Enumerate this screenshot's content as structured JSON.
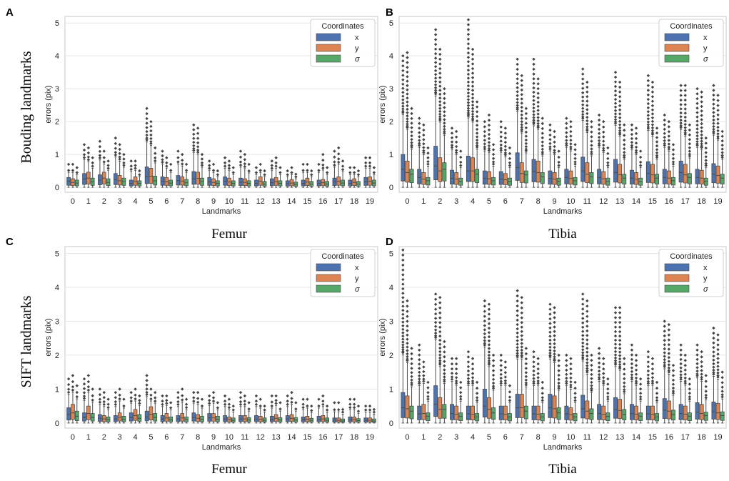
{
  "figure": {
    "row_labels": [
      "Bouding landmarks",
      "SIFT landmarks"
    ],
    "column_captions": [
      {
        "label": "Femur"
      },
      {
        "label": "Tibia"
      },
      {
        "label": "Femur"
      },
      {
        "label": "Tibia"
      }
    ]
  },
  "colors": {
    "x": "#4c72b0",
    "y": "#dd8452",
    "sigma": "#55a868",
    "outlier": "#444444",
    "grid": "#e6e6e6",
    "frame": "#c8c8c8"
  },
  "chart_data": [
    {
      "panel": "A",
      "type": "boxplot",
      "bone": "Femur",
      "landmark_set": "Bouding landmarks",
      "xlabel": "Landmarks",
      "ylabel": "errors (pix)",
      "ylim": [
        -0.15,
        5.2
      ],
      "yticks": [
        0,
        1,
        2,
        3,
        4,
        5
      ],
      "categories": [
        "0",
        "1",
        "2",
        "3",
        "4",
        "5",
        "6",
        "7",
        "8",
        "9",
        "10",
        "11",
        "12",
        "13",
        "14",
        "15",
        "16",
        "17",
        "18",
        "19"
      ],
      "legend": {
        "title": "Coordinates",
        "entries": [
          "x",
          "y",
          "σ"
        ]
      },
      "series": [
        {
          "name": "x",
          "upper_quartile": [
            0.3,
            0.42,
            0.38,
            0.42,
            0.22,
            0.62,
            0.32,
            0.36,
            0.48,
            0.3,
            0.32,
            0.28,
            0.22,
            0.26,
            0.2,
            0.22,
            0.22,
            0.28,
            0.22,
            0.3
          ],
          "median": [
            0.18,
            0.25,
            0.22,
            0.24,
            0.12,
            0.32,
            0.18,
            0.2,
            0.26,
            0.17,
            0.18,
            0.16,
            0.12,
            0.14,
            0.11,
            0.12,
            0.12,
            0.16,
            0.12,
            0.17
          ],
          "max_outlier": [
            0.7,
            1.3,
            1.4,
            1.5,
            0.8,
            2.4,
            1.1,
            1.1,
            1.9,
            0.8,
            0.9,
            1.1,
            0.6,
            0.8,
            0.5,
            0.7,
            0.7,
            1.1,
            0.6,
            0.9
          ]
        },
        {
          "name": "y",
          "upper_quartile": [
            0.26,
            0.46,
            0.46,
            0.36,
            0.32,
            0.58,
            0.3,
            0.32,
            0.46,
            0.26,
            0.28,
            0.26,
            0.32,
            0.3,
            0.24,
            0.28,
            0.24,
            0.32,
            0.26,
            0.32
          ],
          "median": [
            0.15,
            0.28,
            0.28,
            0.2,
            0.18,
            0.34,
            0.17,
            0.19,
            0.27,
            0.15,
            0.16,
            0.15,
            0.18,
            0.17,
            0.13,
            0.16,
            0.14,
            0.18,
            0.15,
            0.18
          ],
          "max_outlier": [
            0.7,
            1.2,
            1.1,
            1.3,
            0.8,
            2.0,
            0.9,
            1.0,
            1.8,
            0.7,
            0.8,
            1.0,
            0.7,
            0.9,
            0.6,
            0.7,
            1.0,
            1.2,
            0.6,
            0.9
          ]
        },
        {
          "name": "σ",
          "upper_quartile": [
            0.22,
            0.28,
            0.26,
            0.28,
            0.2,
            0.34,
            0.22,
            0.24,
            0.28,
            0.2,
            0.2,
            0.2,
            0.18,
            0.2,
            0.16,
            0.18,
            0.18,
            0.22,
            0.18,
            0.22
          ],
          "median": [
            0.13,
            0.17,
            0.15,
            0.17,
            0.12,
            0.2,
            0.13,
            0.14,
            0.17,
            0.12,
            0.12,
            0.12,
            0.1,
            0.12,
            0.09,
            0.1,
            0.1,
            0.13,
            0.1,
            0.13
          ],
          "max_outlier": [
            0.6,
            0.9,
            0.8,
            1.0,
            0.5,
            1.2,
            0.7,
            0.7,
            1.0,
            0.5,
            0.6,
            0.7,
            0.5,
            0.6,
            0.4,
            0.5,
            0.6,
            0.8,
            0.5,
            0.6
          ]
        }
      ]
    },
    {
      "panel": "B",
      "type": "boxplot",
      "bone": "Tibia",
      "landmark_set": "Bouding landmarks",
      "xlabel": "Landmarks",
      "ylabel": "errors (pix)",
      "ylim": [
        -0.15,
        5.2
      ],
      "yticks": [
        0,
        1,
        2,
        3,
        4,
        5
      ],
      "categories": [
        "0",
        "1",
        "2",
        "3",
        "4",
        "5",
        "6",
        "7",
        "8",
        "9",
        "10",
        "11",
        "12",
        "13",
        "14",
        "15",
        "16",
        "17",
        "18",
        "19"
      ],
      "legend": {
        "title": "Coordinates",
        "entries": [
          "x",
          "y",
          "σ"
        ]
      },
      "series": [
        {
          "name": "x",
          "upper_quartile": [
            1.0,
            0.55,
            1.25,
            0.52,
            0.95,
            0.5,
            0.48,
            1.05,
            0.85,
            0.5,
            0.55,
            0.92,
            0.55,
            0.85,
            0.52,
            0.78,
            0.55,
            0.8,
            0.55,
            0.72
          ],
          "median": [
            0.55,
            0.3,
            0.65,
            0.28,
            0.5,
            0.27,
            0.25,
            0.6,
            0.48,
            0.27,
            0.3,
            0.5,
            0.3,
            0.45,
            0.28,
            0.42,
            0.3,
            0.45,
            0.3,
            0.4
          ],
          "max_outlier": [
            4.0,
            2.1,
            4.8,
            1.8,
            5.1,
            2.0,
            2.0,
            3.9,
            3.9,
            1.9,
            2.1,
            3.6,
            2.2,
            3.5,
            1.9,
            3.4,
            2.2,
            3.1,
            3.0,
            3.1
          ]
        },
        {
          "name": "y",
          "upper_quartile": [
            0.8,
            0.45,
            0.9,
            0.45,
            0.9,
            0.48,
            0.42,
            0.75,
            0.8,
            0.45,
            0.5,
            0.75,
            0.48,
            0.7,
            0.45,
            0.7,
            0.5,
            0.7,
            0.52,
            0.65
          ],
          "median": [
            0.45,
            0.25,
            0.5,
            0.25,
            0.5,
            0.26,
            0.23,
            0.42,
            0.45,
            0.25,
            0.27,
            0.4,
            0.26,
            0.38,
            0.25,
            0.38,
            0.28,
            0.38,
            0.28,
            0.36
          ],
          "max_outlier": [
            4.1,
            1.9,
            4.2,
            1.7,
            4.2,
            2.2,
            1.8,
            3.4,
            3.3,
            1.7,
            2.0,
            3.2,
            2.0,
            3.2,
            1.8,
            3.2,
            2.0,
            3.1,
            2.9,
            2.8
          ]
        },
        {
          "name": "σ",
          "upper_quartile": [
            0.55,
            0.3,
            0.75,
            0.28,
            0.55,
            0.3,
            0.28,
            0.5,
            0.45,
            0.28,
            0.3,
            0.45,
            0.28,
            0.4,
            0.28,
            0.4,
            0.3,
            0.42,
            0.28,
            0.4
          ],
          "median": [
            0.4,
            0.2,
            0.55,
            0.18,
            0.4,
            0.2,
            0.18,
            0.38,
            0.32,
            0.18,
            0.2,
            0.32,
            0.18,
            0.28,
            0.18,
            0.28,
            0.2,
            0.3,
            0.18,
            0.28
          ],
          "max_outlier": [
            2.4,
            1.2,
            3.0,
            1.1,
            2.6,
            1.3,
            1.2,
            2.4,
            2.1,
            1.1,
            1.3,
            2.0,
            1.2,
            1.9,
            1.1,
            1.8,
            1.3,
            1.9,
            1.5,
            1.7
          ]
        }
      ]
    },
    {
      "panel": "C",
      "type": "boxplot",
      "bone": "Femur",
      "landmark_set": "SIFT landmarks",
      "xlabel": "Landmarks",
      "ylabel": "errors (pix)",
      "ylim": [
        -0.15,
        5.2
      ],
      "yticks": [
        0,
        1,
        2,
        3,
        4,
        5
      ],
      "categories": [
        "0",
        "1",
        "2",
        "3",
        "4",
        "5",
        "6",
        "7",
        "8",
        "9",
        "10",
        "11",
        "12",
        "13",
        "14",
        "15",
        "16",
        "17",
        "18",
        "19"
      ],
      "legend": {
        "title": "Coordinates",
        "entries": [
          "x",
          "y",
          "σ"
        ]
      },
      "series": [
        {
          "name": "x",
          "upper_quartile": [
            0.45,
            0.3,
            0.25,
            0.22,
            0.3,
            0.35,
            0.22,
            0.22,
            0.3,
            0.28,
            0.22,
            0.22,
            0.22,
            0.2,
            0.22,
            0.18,
            0.2,
            0.15,
            0.18,
            0.15
          ],
          "median": [
            0.25,
            0.16,
            0.14,
            0.12,
            0.16,
            0.18,
            0.12,
            0.12,
            0.16,
            0.15,
            0.12,
            0.12,
            0.12,
            0.11,
            0.12,
            0.1,
            0.11,
            0.08,
            0.1,
            0.08
          ],
          "max_outlier": [
            1.3,
            1.3,
            1.0,
            0.9,
            0.9,
            1.4,
            0.8,
            0.9,
            0.9,
            0.8,
            0.8,
            0.9,
            0.8,
            0.8,
            0.8,
            0.7,
            0.7,
            0.6,
            0.7,
            0.5
          ]
        },
        {
          "name": "y",
          "upper_quartile": [
            0.55,
            0.5,
            0.22,
            0.3,
            0.4,
            0.48,
            0.28,
            0.28,
            0.25,
            0.28,
            0.18,
            0.22,
            0.2,
            0.25,
            0.25,
            0.2,
            0.22,
            0.15,
            0.18,
            0.15
          ],
          "median": [
            0.3,
            0.28,
            0.12,
            0.17,
            0.22,
            0.26,
            0.15,
            0.15,
            0.14,
            0.15,
            0.1,
            0.12,
            0.11,
            0.14,
            0.14,
            0.11,
            0.12,
            0.08,
            0.1,
            0.08
          ],
          "max_outlier": [
            1.4,
            1.4,
            0.9,
            1.0,
            1.0,
            1.0,
            0.8,
            1.0,
            0.9,
            0.9,
            0.7,
            0.8,
            0.7,
            0.8,
            0.9,
            0.7,
            0.8,
            0.6,
            0.7,
            0.5
          ]
        },
        {
          "name": "σ",
          "upper_quartile": [
            0.35,
            0.28,
            0.18,
            0.2,
            0.25,
            0.28,
            0.18,
            0.18,
            0.2,
            0.2,
            0.15,
            0.16,
            0.15,
            0.16,
            0.16,
            0.14,
            0.15,
            0.12,
            0.13,
            0.12
          ],
          "median": [
            0.2,
            0.16,
            0.1,
            0.11,
            0.14,
            0.16,
            0.1,
            0.1,
            0.11,
            0.11,
            0.08,
            0.09,
            0.08,
            0.09,
            0.09,
            0.08,
            0.08,
            0.06,
            0.07,
            0.06
          ],
          "max_outlier": [
            1.1,
            1.0,
            0.7,
            0.7,
            0.8,
            0.9,
            0.6,
            0.7,
            0.7,
            0.6,
            0.5,
            0.6,
            0.5,
            0.6,
            0.6,
            0.5,
            0.5,
            0.4,
            0.5,
            0.4
          ]
        }
      ]
    },
    {
      "panel": "D",
      "type": "boxplot",
      "bone": "Tibia",
      "landmark_set": "SIFT landmarks",
      "xlabel": "Landmarks",
      "ylabel": "errors (pix)",
      "ylim": [
        -0.15,
        5.2
      ],
      "yticks": [
        0,
        1,
        2,
        3,
        4,
        5
      ],
      "categories": [
        "0",
        "1",
        "2",
        "3",
        "4",
        "5",
        "6",
        "7",
        "8",
        "9",
        "10",
        "11",
        "12",
        "13",
        "14",
        "15",
        "16",
        "17",
        "18",
        "19"
      ],
      "legend": {
        "title": "Coordinates",
        "entries": [
          "x",
          "y",
          "σ"
        ]
      },
      "series": [
        {
          "name": "x",
          "upper_quartile": [
            0.9,
            0.5,
            1.1,
            0.55,
            0.5,
            1.0,
            0.5,
            0.85,
            0.5,
            0.85,
            0.5,
            0.82,
            0.55,
            0.75,
            0.55,
            0.5,
            0.72,
            0.55,
            0.6,
            0.62
          ],
          "median": [
            0.45,
            0.27,
            0.55,
            0.28,
            0.27,
            0.5,
            0.27,
            0.45,
            0.27,
            0.45,
            0.27,
            0.42,
            0.28,
            0.4,
            0.28,
            0.27,
            0.38,
            0.28,
            0.32,
            0.33
          ],
          "max_outlier": [
            5.1,
            2.3,
            3.8,
            1.9,
            2.1,
            3.6,
            2.0,
            3.9,
            2.1,
            3.5,
            2.0,
            3.8,
            2.2,
            3.4,
            2.3,
            2.1,
            3.0,
            2.3,
            2.3,
            2.8
          ]
        },
        {
          "name": "y",
          "upper_quartile": [
            0.8,
            0.55,
            0.75,
            0.5,
            0.5,
            0.75,
            0.5,
            0.85,
            0.5,
            0.8,
            0.45,
            0.65,
            0.5,
            0.7,
            0.5,
            0.5,
            0.65,
            0.5,
            0.55,
            0.58
          ],
          "median": [
            0.42,
            0.28,
            0.4,
            0.26,
            0.26,
            0.4,
            0.26,
            0.45,
            0.26,
            0.42,
            0.24,
            0.35,
            0.26,
            0.37,
            0.26,
            0.26,
            0.35,
            0.26,
            0.28,
            0.3
          ],
          "max_outlier": [
            3.6,
            1.8,
            3.7,
            1.9,
            1.9,
            3.5,
            1.8,
            3.7,
            1.9,
            3.4,
            1.9,
            3.6,
            1.9,
            3.4,
            2.0,
            1.9,
            2.9,
            2.0,
            2.1,
            2.6
          ]
        },
        {
          "name": "σ",
          "upper_quartile": [
            0.5,
            0.3,
            0.55,
            0.3,
            0.28,
            0.45,
            0.28,
            0.5,
            0.28,
            0.45,
            0.28,
            0.42,
            0.3,
            0.4,
            0.3,
            0.28,
            0.38,
            0.3,
            0.32,
            0.33
          ],
          "median": [
            0.35,
            0.2,
            0.4,
            0.2,
            0.18,
            0.3,
            0.18,
            0.35,
            0.18,
            0.3,
            0.18,
            0.28,
            0.2,
            0.26,
            0.2,
            0.18,
            0.25,
            0.2,
            0.22,
            0.22
          ],
          "max_outlier": [
            2.2,
            1.2,
            2.4,
            1.2,
            1.2,
            2.0,
            1.1,
            2.2,
            1.2,
            2.0,
            1.2,
            2.0,
            1.3,
            1.9,
            1.3,
            1.2,
            1.7,
            1.3,
            1.4,
            1.5
          ]
        }
      ]
    }
  ]
}
